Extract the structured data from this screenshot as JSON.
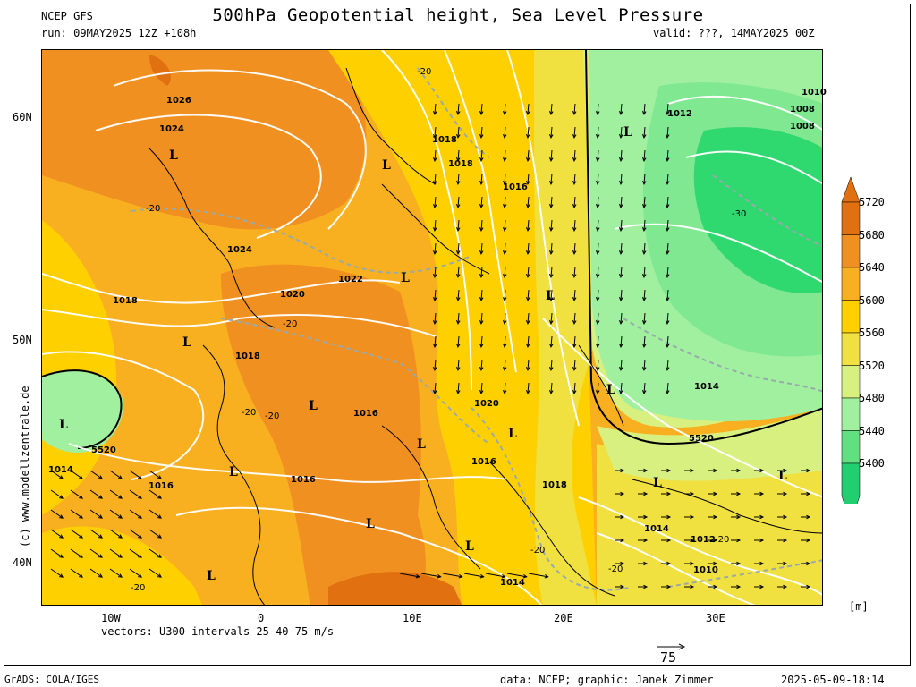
{
  "header": {
    "model": "NCEP GFS",
    "run": "run: 09MAY2025 12Z +108h",
    "title": "500hPa Geopotential height, Sea Level Pressure",
    "valid": "valid: ???, 14MAY2025 00Z"
  },
  "axes": {
    "y_ticks": [
      "60N",
      "50N",
      "40N"
    ],
    "x_ticks": [
      "10W",
      "0",
      "10E",
      "20E",
      "30E"
    ]
  },
  "colorbar": {
    "values": [
      "5720",
      "5680",
      "5640",
      "5600",
      "5560",
      "5520",
      "5480",
      "5440",
      "5400"
    ],
    "colors": [
      "#e07010",
      "#f09020",
      "#f8b020",
      "#ffd000",
      "#f0e040",
      "#d8f080",
      "#a0f0a0",
      "#60e080",
      "#20d070"
    ],
    "unit": "[m]"
  },
  "vectors_caption": "vectors: U300 intervals 25 40 75 m/s",
  "vector_scale_label": "75",
  "side_credit": "(c) www.modellzentrale.de",
  "footer": {
    "software": "GrADS: COLA/IGES",
    "credit": "data: NCEP; graphic: Janek Zimmer",
    "timestamp": "2025-05-09-18:14"
  },
  "isobar_labels": [
    {
      "text": "1026"
    },
    {
      "text": "1024"
    },
    {
      "text": "1024"
    },
    {
      "text": "1022"
    },
    {
      "text": "1020"
    },
    {
      "text": "1018"
    },
    {
      "text": "1018"
    },
    {
      "text": "1018"
    },
    {
      "text": "1018"
    },
    {
      "text": "1016"
    },
    {
      "text": "1016"
    },
    {
      "text": "1016"
    },
    {
      "text": "1016"
    },
    {
      "text": "1016"
    },
    {
      "text": "1018"
    },
    {
      "text": "1020"
    },
    {
      "text": "1014"
    },
    {
      "text": "1014"
    },
    {
      "text": "1014"
    },
    {
      "text": "1012"
    },
    {
      "text": "1010"
    },
    {
      "text": "1012"
    },
    {
      "text": "1014"
    },
    {
      "text": "1010"
    },
    {
      "text": "1008"
    },
    {
      "text": "1008"
    },
    {
      "text": "5520"
    },
    {
      "text": "5520"
    }
  ],
  "lows": [
    "L",
    "L",
    "L",
    "L",
    "L",
    "L",
    "L",
    "L",
    "L",
    "L",
    "L",
    "L",
    "L",
    "L",
    "L",
    "L",
    "L"
  ],
  "temp_labels": [
    "-20",
    "-20",
    "-20",
    "-20",
    "-20",
    "-20",
    "-20",
    "-20",
    "-20",
    "-30"
  ]
}
